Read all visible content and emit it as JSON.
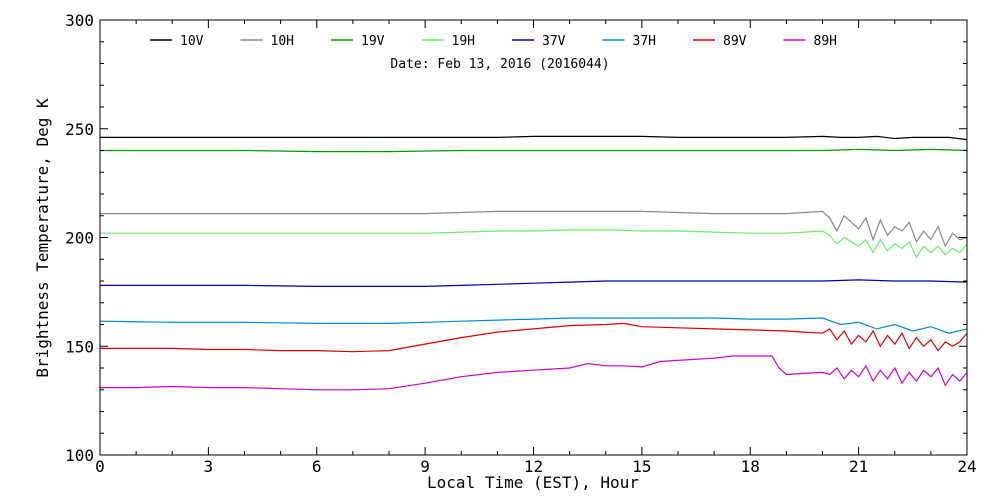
{
  "chart_data": {
    "type": "line",
    "title": "",
    "subtitle": "Date: Feb 13, 2016 (2016044)",
    "xlabel": "Local Time (EST), Hour",
    "ylabel": "Brightness Temperature, Deg K",
    "xlim": [
      0,
      24
    ],
    "ylim": [
      100,
      300
    ],
    "xticks": [
      0,
      3,
      6,
      9,
      12,
      15,
      18,
      21,
      24
    ],
    "yticks": [
      100,
      150,
      200,
      250,
      300
    ],
    "grid": false,
    "legend_position": "top",
    "series": [
      {
        "name": "10V",
        "color": "#000000",
        "x": [
          0,
          1,
          2,
          3,
          4,
          5,
          6,
          7,
          8,
          9,
          10,
          11,
          12,
          13,
          14,
          15,
          16,
          17,
          18,
          19,
          20,
          20.5,
          21,
          21.5,
          22,
          22.5,
          23,
          23.5,
          24
        ],
        "y": [
          246,
          246,
          246,
          246,
          246,
          246,
          246,
          246,
          246,
          246,
          246,
          246,
          246.5,
          246.5,
          246.5,
          246.5,
          246,
          246,
          246,
          246,
          246.5,
          246,
          246,
          246.5,
          245.5,
          246,
          246,
          246,
          245
        ]
      },
      {
        "name": "10H",
        "color": "#888888",
        "x": [
          0,
          1,
          2,
          3,
          4,
          5,
          6,
          7,
          8,
          9,
          10,
          11,
          12,
          13,
          14,
          15,
          16,
          17,
          18,
          19,
          19.5,
          20,
          20.2,
          20.4,
          20.6,
          20.8,
          21,
          21.2,
          21.4,
          21.6,
          21.8,
          22,
          22.2,
          22.4,
          22.6,
          22.8,
          23,
          23.2,
          23.4,
          23.6,
          23.8,
          24
        ],
        "y": [
          211,
          211,
          211,
          211,
          211,
          211,
          211,
          211,
          211,
          211,
          211.5,
          212,
          212,
          212,
          212,
          212,
          211.5,
          211,
          211,
          211,
          211.5,
          212,
          209,
          203,
          210,
          207,
          204,
          209,
          199,
          208,
          201,
          205,
          203,
          207,
          198,
          203,
          199,
          205,
          196,
          202,
          199,
          200
        ]
      },
      {
        "name": "19V",
        "color": "#009900",
        "x": [
          0,
          2,
          4,
          6,
          8,
          10,
          12,
          14,
          16,
          18,
          20,
          21,
          22,
          23,
          24
        ],
        "y": [
          240,
          240,
          240,
          239.5,
          239.5,
          240,
          240,
          240,
          240,
          240,
          240,
          240.5,
          240,
          240.5,
          240
        ]
      },
      {
        "name": "19H",
        "color": "#66ee66",
        "x": [
          0,
          1,
          2,
          3,
          4,
          5,
          6,
          7,
          8,
          9,
          10,
          11,
          12,
          13,
          14,
          15,
          16,
          17,
          18,
          19,
          19.5,
          20,
          20.2,
          20.4,
          20.6,
          20.8,
          21,
          21.2,
          21.4,
          21.6,
          21.8,
          22,
          22.2,
          22.4,
          22.6,
          22.8,
          23,
          23.2,
          23.4,
          23.6,
          23.8,
          24
        ],
        "y": [
          202,
          202,
          202,
          202,
          202,
          202,
          202,
          202,
          202,
          202,
          202.5,
          203,
          203,
          203.5,
          203.5,
          203,
          203,
          202.5,
          202,
          202,
          202.5,
          203,
          201,
          197,
          200,
          198,
          196,
          199,
          193,
          199,
          194,
          197,
          195,
          198,
          191,
          196,
          193,
          196,
          192,
          195,
          193,
          197
        ]
      },
      {
        "name": "37V",
        "color": "#0000aa",
        "x": [
          0,
          2,
          4,
          6,
          8,
          9,
          10,
          11,
          12,
          13,
          14,
          15,
          16,
          17,
          18,
          19,
          20,
          21,
          22,
          23,
          24
        ],
        "y": [
          178,
          178,
          178,
          177.5,
          177.5,
          177.5,
          178,
          178.5,
          179,
          179.5,
          180,
          180,
          180,
          180,
          180,
          180,
          180,
          180.5,
          180,
          180,
          179.5
        ]
      },
      {
        "name": "37H",
        "color": "#0088dd",
        "x": [
          0,
          2,
          4,
          6,
          8,
          9,
          10,
          11,
          12,
          13,
          14,
          15,
          16,
          17,
          18,
          19,
          20,
          20.5,
          21,
          21.5,
          22,
          22.5,
          23,
          23.5,
          24
        ],
        "y": [
          161.5,
          161,
          161,
          160.5,
          160.5,
          161,
          161.5,
          162,
          162.5,
          163,
          163,
          163,
          163,
          163,
          162.5,
          162.5,
          163,
          160,
          161,
          158,
          160,
          157,
          159,
          156,
          158
        ]
      },
      {
        "name": "89V",
        "color": "#dd0000",
        "x": [
          0,
          1,
          2,
          3,
          4,
          5,
          6,
          7,
          8,
          9,
          10,
          11,
          12,
          13,
          14,
          14.5,
          15,
          16,
          17,
          18,
          19,
          19.5,
          20,
          20.2,
          20.4,
          20.6,
          20.8,
          21,
          21.2,
          21.4,
          21.6,
          21.8,
          22,
          22.2,
          22.4,
          22.6,
          22.8,
          23,
          23.2,
          23.4,
          23.6,
          23.8,
          24
        ],
        "y": [
          149,
          149,
          149,
          148.5,
          148.5,
          148,
          148,
          147.5,
          148,
          151,
          154,
          156.5,
          158,
          159.5,
          160,
          160.5,
          159,
          158.5,
          158,
          157.5,
          157,
          156.5,
          156,
          158,
          153,
          157,
          151,
          155,
          152,
          157,
          150,
          155,
          151,
          156,
          149,
          154,
          150,
          153,
          148,
          152,
          150,
          152,
          156
        ]
      },
      {
        "name": "89H",
        "color": "#cc00cc",
        "x": [
          0,
          1,
          2,
          3,
          4,
          5,
          6,
          7,
          8,
          9,
          10,
          11,
          12,
          13,
          13.5,
          14,
          14.5,
          15,
          15.5,
          16,
          17,
          17.5,
          18,
          18.6,
          18.8,
          19,
          19.5,
          20,
          20.2,
          20.4,
          20.6,
          20.8,
          21,
          21.2,
          21.4,
          21.6,
          21.8,
          22,
          22.2,
          22.4,
          22.6,
          22.8,
          23,
          23.2,
          23.4,
          23.6,
          23.8,
          24
        ],
        "y": [
          131,
          131,
          131.5,
          131,
          131,
          130.5,
          130,
          130,
          130.5,
          133,
          136,
          138,
          139,
          140,
          142,
          141,
          141,
          140.5,
          143,
          143.5,
          144.5,
          145.5,
          145.5,
          145.5,
          140,
          137,
          137.5,
          138,
          137,
          140,
          135,
          139,
          136,
          141,
          134,
          139,
          135,
          140,
          133,
          138,
          134,
          139,
          136,
          140,
          132,
          137,
          134,
          138
        ]
      }
    ]
  }
}
